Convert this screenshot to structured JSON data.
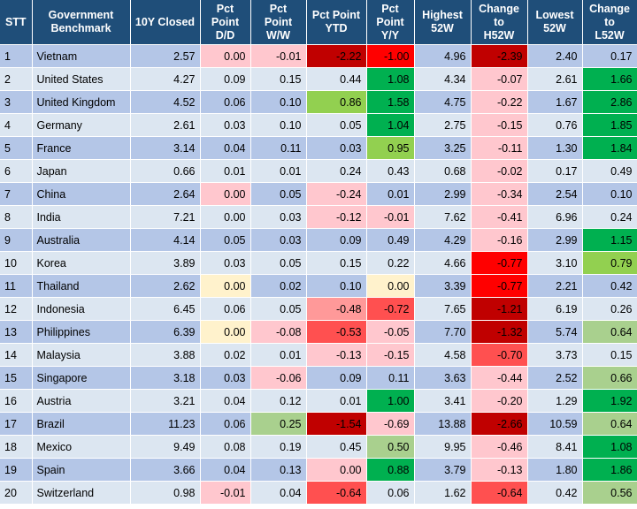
{
  "chart_data": {
    "type": "table",
    "columns": [
      "STT",
      "Government Benchmark",
      "10Y Closed",
      "Pct Point D/D",
      "Pct Point W/W",
      "Pct Point YTD",
      "Pct Point Y/Y",
      "Highest 52W",
      "Change to H52W",
      "Lowest 52W",
      "Change to L52W"
    ],
    "header_lines": [
      [
        "STT"
      ],
      [
        "Government",
        "Benchmark"
      ],
      [
        "10Y Closed"
      ],
      [
        "Pct",
        "Point",
        "D/D"
      ],
      [
        "Pct",
        "Point",
        "W/W"
      ],
      [
        "Pct Point",
        "YTD"
      ],
      [
        "Pct",
        "Point",
        "Y/Y"
      ],
      [
        "Highest",
        "52W"
      ],
      [
        "Change",
        "to",
        "H52W"
      ],
      [
        "Lowest",
        "52W"
      ],
      [
        "Change",
        "to",
        "L52W"
      ]
    ],
    "rows": [
      [
        "1",
        "Vietnam",
        "2.57",
        "0.00",
        "-0.01",
        "-2.22",
        "-1.00",
        "4.96",
        "-2.39",
        "2.40",
        "0.17"
      ],
      [
        "2",
        "United States",
        "4.27",
        "0.09",
        "0.15",
        "0.44",
        "1.08",
        "4.34",
        "-0.07",
        "2.61",
        "1.66"
      ],
      [
        "3",
        "United Kingdom",
        "4.52",
        "0.06",
        "0.10",
        "0.86",
        "1.58",
        "4.75",
        "-0.22",
        "1.67",
        "2.86"
      ],
      [
        "4",
        "Germany",
        "2.61",
        "0.03",
        "0.10",
        "0.05",
        "1.04",
        "2.75",
        "-0.15",
        "0.76",
        "1.85"
      ],
      [
        "5",
        "France",
        "3.14",
        "0.04",
        "0.11",
        "0.03",
        "0.95",
        "3.25",
        "-0.11",
        "1.30",
        "1.84"
      ],
      [
        "6",
        "Japan",
        "0.66",
        "0.01",
        "0.01",
        "0.24",
        "0.43",
        "0.68",
        "-0.02",
        "0.17",
        "0.49"
      ],
      [
        "7",
        "China",
        "2.64",
        "0.00",
        "0.05",
        "-0.24",
        "0.01",
        "2.99",
        "-0.34",
        "2.54",
        "0.10"
      ],
      [
        "8",
        "India",
        "7.21",
        "0.00",
        "0.03",
        "-0.12",
        "-0.01",
        "7.62",
        "-0.41",
        "6.96",
        "0.24"
      ],
      [
        "9",
        "Australia",
        "4.14",
        "0.05",
        "0.03",
        "0.09",
        "0.49",
        "4.29",
        "-0.16",
        "2.99",
        "1.15"
      ],
      [
        "10",
        "Korea",
        "3.89",
        "0.03",
        "0.05",
        "0.15",
        "0.22",
        "4.66",
        "-0.77",
        "3.10",
        "0.79"
      ],
      [
        "11",
        "Thailand",
        "2.62",
        "0.00",
        "0.02",
        "0.10",
        "0.00",
        "3.39",
        "-0.77",
        "2.21",
        "0.42"
      ],
      [
        "12",
        "Indonesia",
        "6.45",
        "0.06",
        "0.05",
        "-0.48",
        "-0.72",
        "7.65",
        "-1.21",
        "6.19",
        "0.26"
      ],
      [
        "13",
        "Philippines",
        "6.39",
        "0.00",
        "-0.08",
        "-0.53",
        "-0.05",
        "7.70",
        "-1.32",
        "5.74",
        "0.64"
      ],
      [
        "14",
        "Malaysia",
        "3.88",
        "0.02",
        "0.01",
        "-0.13",
        "-0.15",
        "4.58",
        "-0.70",
        "3.73",
        "0.15"
      ],
      [
        "15",
        "Singapore",
        "3.18",
        "0.03",
        "-0.06",
        "0.09",
        "0.11",
        "3.63",
        "-0.44",
        "2.52",
        "0.66"
      ],
      [
        "16",
        "Austria",
        "3.21",
        "0.04",
        "0.12",
        "0.01",
        "1.00",
        "3.41",
        "-0.20",
        "1.29",
        "1.92"
      ],
      [
        "17",
        "Brazil",
        "11.23",
        "0.06",
        "0.25",
        "-1.54",
        "-0.69",
        "13.88",
        "-2.66",
        "10.59",
        "0.64"
      ],
      [
        "18",
        "Mexico",
        "9.49",
        "0.08",
        "0.19",
        "0.45",
        "0.50",
        "9.95",
        "-0.46",
        "8.41",
        "1.08"
      ],
      [
        "19",
        "Spain",
        "3.66",
        "0.04",
        "0.13",
        "0.00",
        "0.88",
        "3.79",
        "-0.13",
        "1.80",
        "1.86"
      ],
      [
        "20",
        "Switzerland",
        "0.98",
        "-0.01",
        "0.04",
        "-0.64",
        "0.06",
        "1.62",
        "-0.64",
        "0.42",
        "0.56"
      ]
    ],
    "cell_colors": [
      [
        "",
        "",
        "",
        "#ffc7ce",
        "#ffc7ce",
        "#c00000",
        "#ff0000",
        "",
        "#c00000",
        "",
        ""
      ],
      [
        "",
        "",
        "",
        "",
        "",
        "",
        "#00b050",
        "",
        "#ffc7ce",
        "",
        "#00b050"
      ],
      [
        "",
        "",
        "",
        "",
        "",
        "#92d050",
        "#00b050",
        "",
        "#ffc7ce",
        "",
        "#00b050"
      ],
      [
        "",
        "",
        "",
        "",
        "",
        "",
        "#00b050",
        "",
        "#ffc7ce",
        "",
        "#00b050"
      ],
      [
        "",
        "",
        "",
        "",
        "",
        "",
        "#92d050",
        "",
        "#ffc7ce",
        "",
        "#00b050"
      ],
      [
        "",
        "",
        "",
        "",
        "",
        "",
        "",
        "",
        "#ffc7ce",
        "",
        ""
      ],
      [
        "",
        "",
        "",
        "#ffc7ce",
        "",
        "#ffc7ce",
        "",
        "",
        "#ffc7ce",
        "",
        ""
      ],
      [
        "",
        "",
        "",
        "",
        "",
        "#ffc7ce",
        "#ffc7ce",
        "",
        "#ffc7ce",
        "",
        ""
      ],
      [
        "",
        "",
        "",
        "",
        "",
        "",
        "",
        "",
        "#ffc7ce",
        "",
        "#00b050"
      ],
      [
        "",
        "",
        "",
        "",
        "",
        "",
        "",
        "",
        "#ff0000",
        "",
        "#92d050"
      ],
      [
        "",
        "",
        "",
        "#fff2cc",
        "",
        "",
        "#fff2cc",
        "",
        "#ff0000",
        "",
        ""
      ],
      [
        "",
        "",
        "",
        "",
        "",
        "#ff9999",
        "#ff5050",
        "",
        "#c00000",
        "",
        ""
      ],
      [
        "",
        "",
        "",
        "#fff2cc",
        "#ffc7ce",
        "#ff5050",
        "#ffc7ce",
        "",
        "#c00000",
        "",
        "#a9d08e"
      ],
      [
        "",
        "",
        "",
        "",
        "",
        "#ffc7ce",
        "#ffc7ce",
        "",
        "#ff5050",
        "",
        ""
      ],
      [
        "",
        "",
        "",
        "",
        "#ffc7ce",
        "",
        "",
        "",
        "#ffc7ce",
        "",
        "#a9d08e"
      ],
      [
        "",
        "",
        "",
        "",
        "",
        "",
        "#00b050",
        "",
        "#ffc7ce",
        "",
        "#00b050"
      ],
      [
        "",
        "",
        "",
        "",
        "#a9d08e",
        "#c00000",
        "#ffc7ce",
        "",
        "#c00000",
        "",
        "#a9d08e"
      ],
      [
        "",
        "",
        "",
        "",
        "",
        "",
        "#a9d08e",
        "",
        "#ffc7ce",
        "",
        "#00b050"
      ],
      [
        "",
        "",
        "",
        "",
        "",
        "#ffc7ce",
        "#00b050",
        "",
        "#ffc7ce",
        "",
        "#00b050"
      ],
      [
        "",
        "",
        "",
        "#ffc7ce",
        "",
        "#ff5050",
        "",
        "",
        "#ff5050",
        "",
        "#a9d08e"
      ]
    ],
    "colors": {
      "header_bg": "#1f4e79",
      "header_text": "#ffffff",
      "row_odd_bg": "#b4c6e7",
      "row_even_bg": "#dce6f1"
    }
  }
}
